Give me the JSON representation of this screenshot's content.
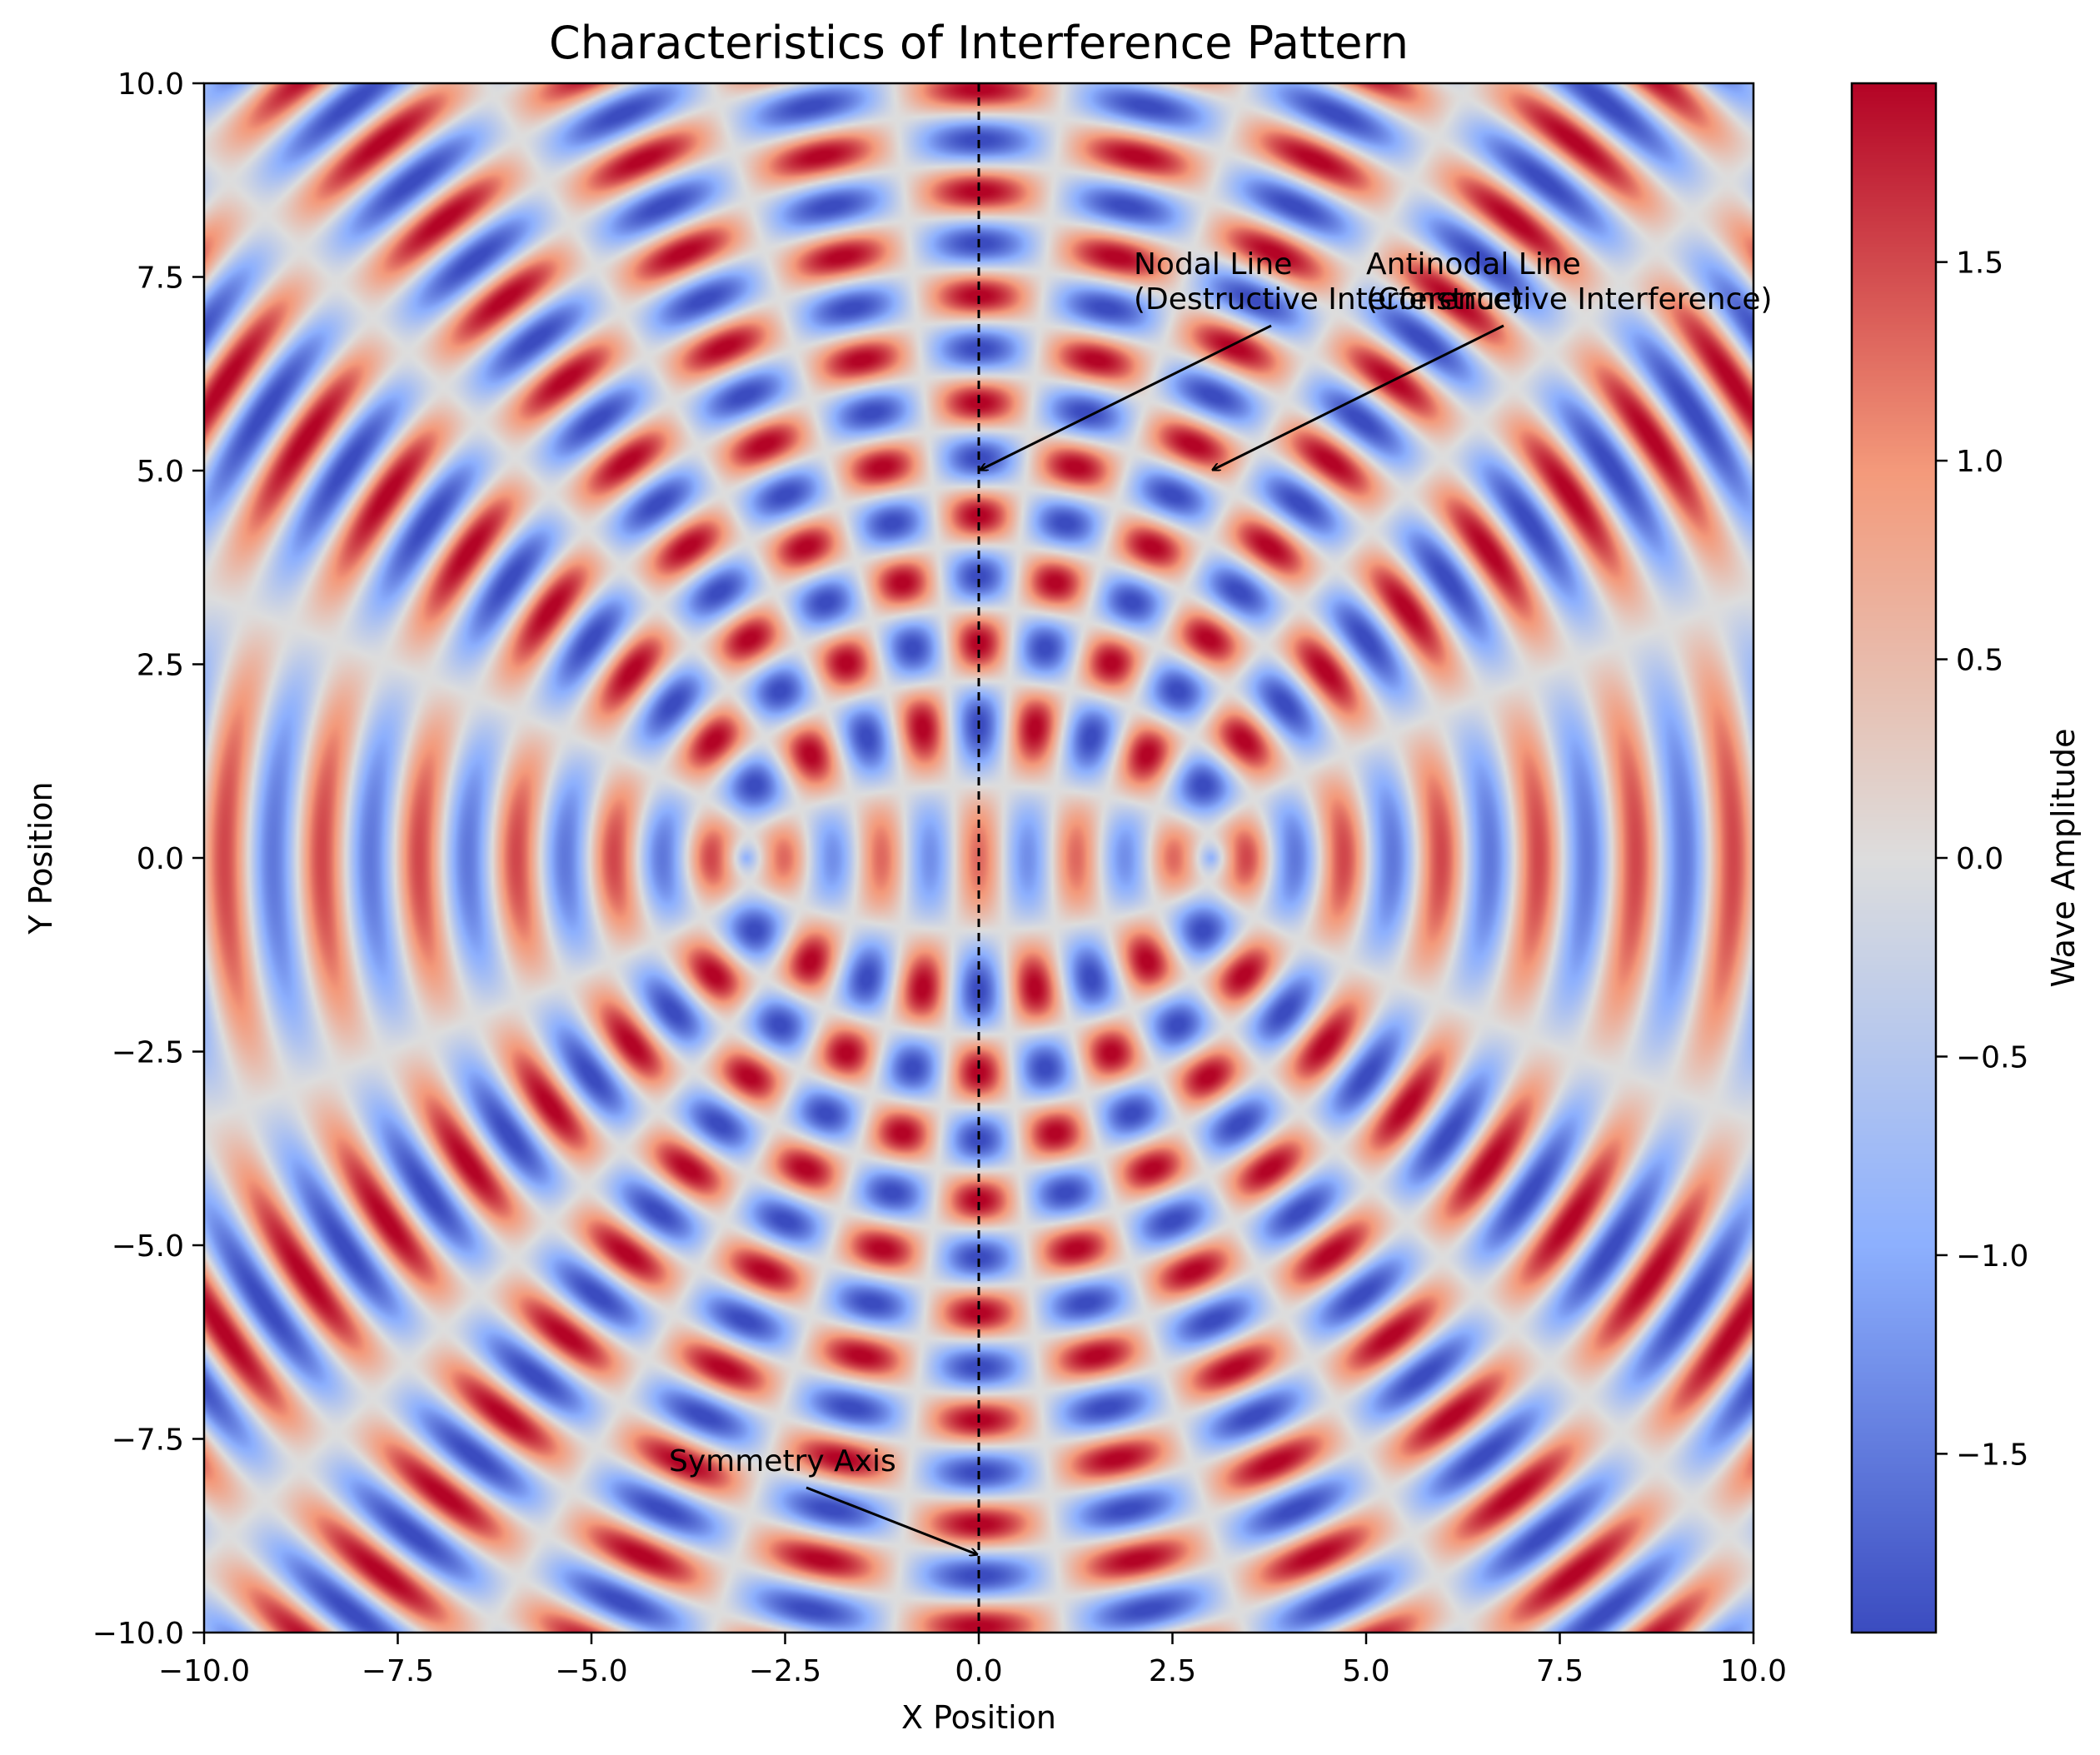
{
  "chart_data": {
    "type": "heatmap",
    "title": "Characteristics of Interference Pattern",
    "xlabel": "X Position",
    "ylabel": "Y Position",
    "xlim": [
      -10,
      10
    ],
    "ylim": [
      -10,
      10
    ],
    "xticks": [
      -10,
      -7.5,
      -5,
      -2.5,
      0,
      2.5,
      5,
      7.5,
      10
    ],
    "xtick_labels": [
      "−10.0",
      "−7.5",
      "−5.0",
      "−2.5",
      "0.0",
      "2.5",
      "5.0",
      "7.5",
      "10.0"
    ],
    "yticks": [
      -10,
      -7.5,
      -5,
      -2.5,
      0,
      2.5,
      5,
      7.5,
      10
    ],
    "ytick_labels": [
      "−10.0",
      "−7.5",
      "−5.0",
      "−2.5",
      "0.0",
      "2.5",
      "5.0",
      "7.5",
      "10.0"
    ],
    "colormap": "coolwarm",
    "colormap_stops": [
      "#3b4cc0",
      "#8db0fe",
      "#dddddd",
      "#f49a7b",
      "#b40426"
    ],
    "colorbar": {
      "label": "Wave Amplitude",
      "range": [
        -1.95,
        1.95
      ],
      "ticks": [
        -1.5,
        -1.0,
        -0.5,
        0.0,
        0.5,
        1.0,
        1.5
      ],
      "tick_labels": [
        "−1.5",
        "−1.0",
        "−0.5",
        "0.0",
        "0.5",
        "1.0",
        "1.5"
      ]
    },
    "field": {
      "description_formula": "sin(k*r1) + sin(k*r2)",
      "sources": [
        [
          -3,
          0
        ],
        [
          3,
          0
        ]
      ],
      "wavenumber": 5
    },
    "symmetry_line": {
      "x": 0,
      "style": "dashed",
      "color": "#000000"
    },
    "annotations": [
      {
        "name": "nodal-line",
        "lines": [
          "Nodal Line",
          "(Destructive Interference)"
        ],
        "text_at": [
          2,
          7
        ],
        "arrow_to": [
          0,
          5
        ]
      },
      {
        "name": "antinodal-line",
        "lines": [
          "Antinodal Line",
          "(Constructive Interference)"
        ],
        "text_at": [
          5,
          7
        ],
        "arrow_to": [
          3,
          5
        ]
      },
      {
        "name": "symmetry-axis",
        "lines": [
          "Symmetry Axis"
        ],
        "text_at": [
          -4,
          -8
        ],
        "arrow_to": [
          0,
          -9
        ]
      }
    ]
  }
}
